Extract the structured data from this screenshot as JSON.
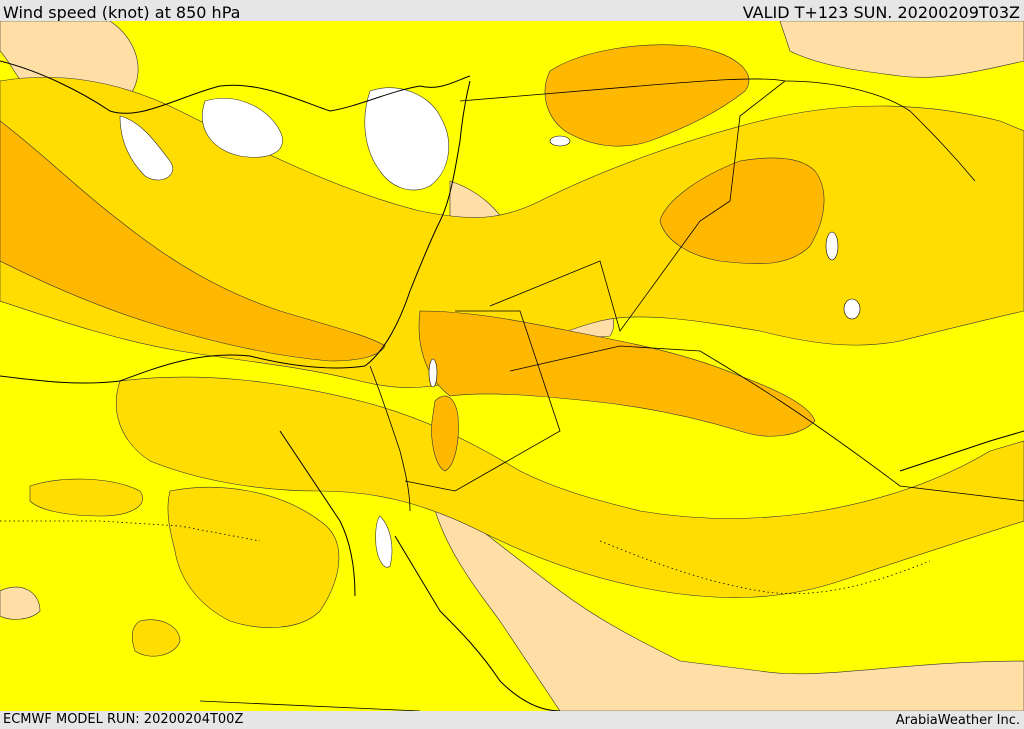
{
  "header": {
    "title": "Wind speed (knot) at 850 hPa",
    "valid": "VALID T+123 SUN. 20200209T03Z"
  },
  "footer": {
    "model_run": "ECMWF MODEL RUN: 20200204T00Z",
    "credit": "ArabiaWeather Inc."
  },
  "colors": {
    "band_0": "#ffffff",
    "band_1": "#ffdfa6",
    "band_2": "#ffff00",
    "band_3": "#ffdd00",
    "band_4": "#ffb800",
    "border": "#000000"
  }
}
